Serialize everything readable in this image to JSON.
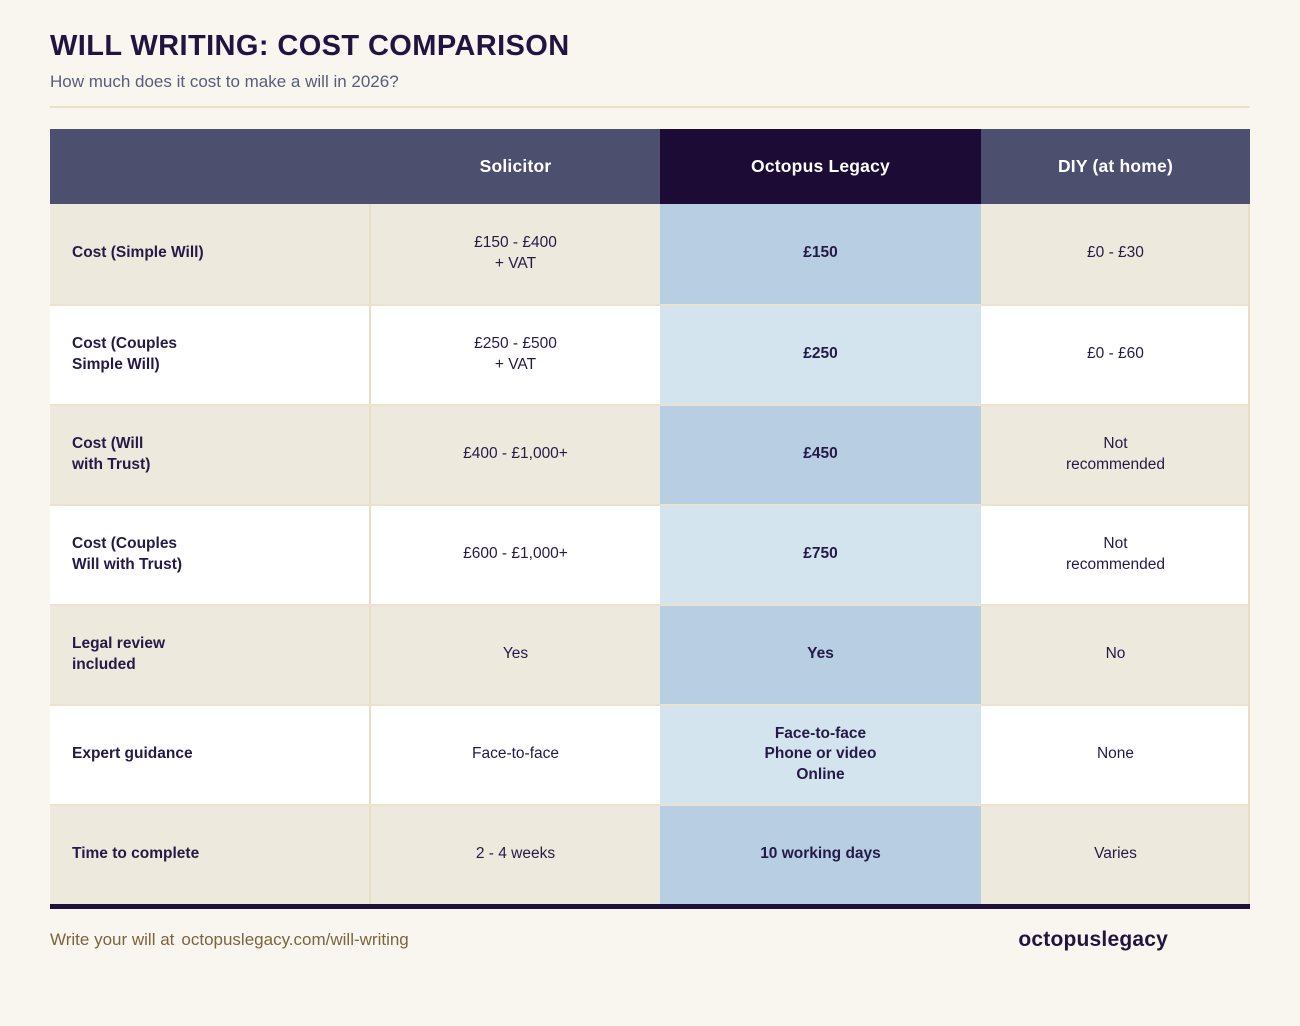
{
  "header": {
    "title": "WILL WRITING: COST COMPARISON",
    "subtitle": "How much does it cost to make a will in 2026?"
  },
  "chart_data": {
    "type": "table",
    "title": "WILL WRITING: COST COMPARISON",
    "subtitle": "How much does it cost to make a will in 2026?",
    "columns": [
      "",
      "Solicitor",
      "Octopus Legacy",
      "DIY (at home)"
    ],
    "rows": [
      [
        "Cost (Simple Will)",
        "£150 - £400\n+ VAT",
        "£150",
        "£0 - £30"
      ],
      [
        "Cost (Couples\nSimple Will)",
        "£250 - £500\n+ VAT",
        "£250",
        "£0 - £60"
      ],
      [
        "Cost (Will\nwith Trust)",
        "£400 - £1,000+",
        "£450",
        "Not\nrecommended"
      ],
      [
        "Cost (Couples\nWill with Trust)",
        "£600 - £1,000+",
        "£750",
        "Not\nrecommended"
      ],
      [
        "Legal review\nincluded",
        "Yes",
        "Yes",
        "No"
      ],
      [
        "Expert guidance",
        "Face-to-face",
        "Face-to-face\nPhone or video\nOnline",
        "None"
      ],
      [
        "Time to complete",
        "2 - 4 weeks",
        "10 working days",
        "Varies"
      ]
    ],
    "highlighted_column": "Octopus Legacy"
  },
  "footer": {
    "cta_prefix": "Write your will at",
    "cta_link": "octopuslegacy.com/will-writing",
    "logo": "octopuslegacy"
  },
  "colors": {
    "page_background": "#F8F6EE",
    "title_navy": "#211441",
    "header_slate": "#4C506E",
    "header_dark_navy": "#1C0B35",
    "row_beige": "#EDE9DC",
    "octopus_cell_blue": "#B7CEE3",
    "octopus_cell_blue_light": "#D4E4EF",
    "footer_brown": "#7D6440"
  }
}
